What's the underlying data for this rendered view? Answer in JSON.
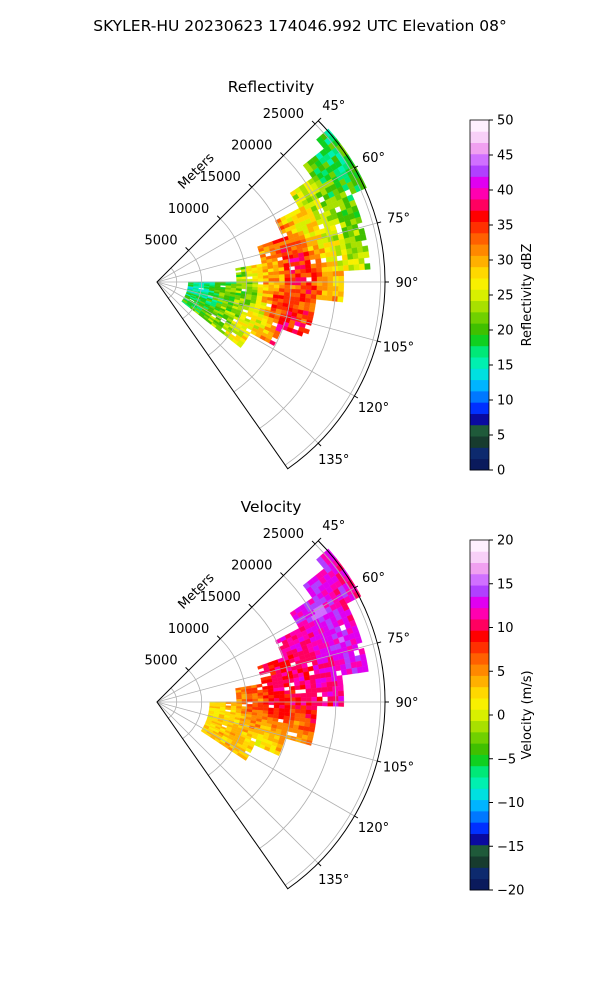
{
  "figure": {
    "suptitle": "SKYLER-HU  20230623  174046.992 UTC Elevation 08°"
  },
  "chart_data": [
    {
      "type": "heatmap",
      "title": "Reflectivity",
      "projection": "polar sector (azimuth 45°–145°, clockwise from north)",
      "range_label": "Meters",
      "range_ticks": [
        "5000",
        "10000",
        "15000",
        "20000",
        "25000"
      ],
      "azimuth_ticks": [
        "45°",
        "60°",
        "75°",
        "90°",
        "105°",
        "120°",
        "135°"
      ],
      "grid": true,
      "colorbar": {
        "label": "Reflectivity dBZ",
        "ticks": [
          "0",
          "5",
          "10",
          "15",
          "20",
          "25",
          "30",
          "35",
          "40",
          "45",
          "50"
        ],
        "range": [
          0,
          50
        ],
        "colors": [
          "#0a1a5c",
          "#0d2a6e",
          "#173b2e",
          "#1f5a3a",
          "#0a0aa0",
          "#0030ff",
          "#0078ff",
          "#00b4ff",
          "#00e0e0",
          "#00f0b0",
          "#00e878",
          "#10d020",
          "#40c000",
          "#70d000",
          "#a8e000",
          "#d8f000",
          "#f8f000",
          "#ffd800",
          "#ffb000",
          "#ff8800",
          "#ff6000",
          "#ff3000",
          "#ff0000",
          "#ff0060",
          "#ff00b0",
          "#e000f0",
          "#b040ff",
          "#d070ff",
          "#f0a0f0",
          "#f8d0f8",
          "#fff0ff"
        ]
      },
      "field": [
        {
          "range_km": 5,
          "azimuth_deg": 97,
          "value": 16
        },
        {
          "range_km": 8,
          "azimuth_deg": 95,
          "value": 20
        },
        {
          "range_km": 10,
          "azimuth_deg": 102,
          "value": 22
        },
        {
          "range_km": 12,
          "azimuth_deg": 110,
          "value": 26
        },
        {
          "range_km": 13,
          "azimuth_deg": 88,
          "value": 30
        },
        {
          "range_km": 14,
          "azimuth_deg": 100,
          "value": 34
        },
        {
          "range_km": 15,
          "azimuth_deg": 108,
          "value": 36
        },
        {
          "range_km": 16,
          "azimuth_deg": 82,
          "value": 36
        },
        {
          "range_km": 18,
          "azimuth_deg": 72,
          "value": 28
        },
        {
          "range_km": 20,
          "azimuth_deg": 65,
          "value": 24
        },
        {
          "range_km": 22,
          "azimuth_deg": 58,
          "value": 20
        },
        {
          "range_km": 24,
          "azimuth_deg": 52,
          "value": 18
        }
      ]
    },
    {
      "type": "heatmap",
      "title": "Velocity",
      "projection": "polar sector (azimuth 45°–145°, clockwise from north)",
      "range_label": "Meters",
      "range_ticks": [
        "5000",
        "10000",
        "15000",
        "20000",
        "25000"
      ],
      "azimuth_ticks": [
        "45°",
        "60°",
        "75°",
        "90°",
        "105°",
        "120°",
        "135°"
      ],
      "grid": true,
      "colorbar": {
        "label": "Velocity (m/s)",
        "ticks": [
          "−20",
          "−15",
          "−10",
          "−5",
          "0",
          "5",
          "10",
          "15",
          "20"
        ],
        "range": [
          -20,
          20
        ],
        "colors": [
          "#0a1a5c",
          "#0d2a6e",
          "#173b2e",
          "#1f5a3a",
          "#0a0aa0",
          "#0030ff",
          "#0078ff",
          "#00b4ff",
          "#00e0e0",
          "#00f0b0",
          "#00e878",
          "#10d020",
          "#40c000",
          "#70d000",
          "#a8e000",
          "#d8f000",
          "#f8f000",
          "#ffd800",
          "#ffb000",
          "#ff8800",
          "#ff6000",
          "#ff3000",
          "#ff0000",
          "#ff0060",
          "#ff00b0",
          "#e000f0",
          "#b040ff",
          "#d070ff",
          "#f0a0f0",
          "#f8d0f8",
          "#fff0ff"
        ]
      },
      "field": [
        {
          "range_km": 6,
          "azimuth_deg": 100,
          "value": 2
        },
        {
          "range_km": 9,
          "azimuth_deg": 103,
          "value": 3
        },
        {
          "range_km": 11,
          "azimuth_deg": 95,
          "value": 6
        },
        {
          "range_km": 13,
          "azimuth_deg": 112,
          "value": 2
        },
        {
          "range_km": 14,
          "azimuth_deg": 88,
          "value": 10
        },
        {
          "range_km": 15,
          "azimuth_deg": 105,
          "value": 5
        },
        {
          "range_km": 17,
          "azimuth_deg": 80,
          "value": 11
        },
        {
          "range_km": 19,
          "azimuth_deg": 70,
          "value": 12
        },
        {
          "range_km": 21,
          "azimuth_deg": 62,
          "value": 14
        },
        {
          "range_km": 23,
          "azimuth_deg": 55,
          "value": 12
        },
        {
          "range_km": 24,
          "azimuth_deg": 50,
          "value": 12
        }
      ]
    }
  ]
}
